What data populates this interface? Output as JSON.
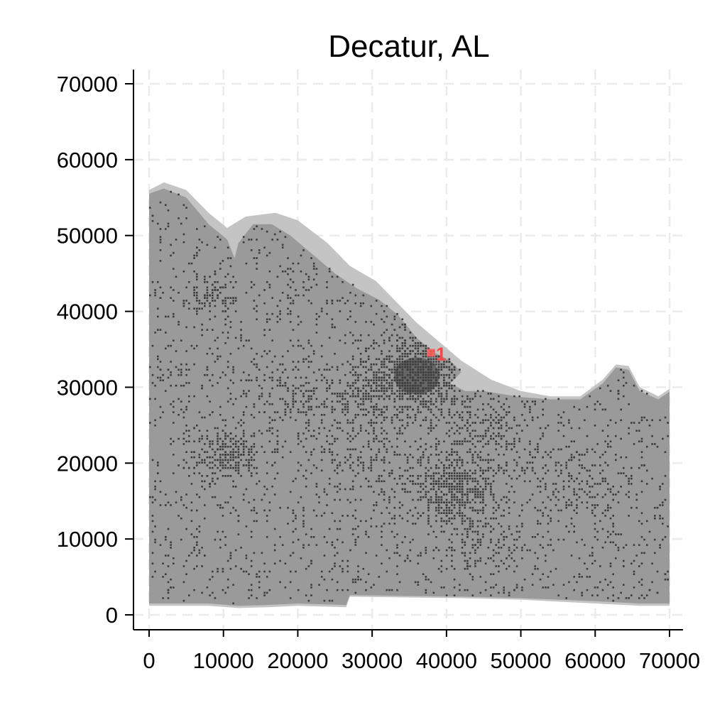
{
  "chart_data": {
    "type": "map",
    "title": "Decatur, AL",
    "xlabel": "",
    "ylabel": "",
    "xlim": [
      -2000,
      72000
    ],
    "ylim": [
      -2000,
      72000
    ],
    "x_ticks": [
      0,
      10000,
      20000,
      30000,
      40000,
      50000,
      60000,
      70000
    ],
    "y_ticks": [
      0,
      10000,
      20000,
      30000,
      40000,
      50000,
      60000,
      70000
    ],
    "x_tick_labels": [
      "0",
      "10000",
      "20000",
      "30000",
      "40000",
      "50000",
      "60000",
      "70000"
    ],
    "y_tick_labels": [
      "0",
      "10000",
      "20000",
      "30000",
      "40000",
      "50000",
      "60000",
      "70000"
    ],
    "grid": true,
    "colors": {
      "land": "#9a9a9a",
      "water_margin": "#c4c4c4",
      "development": "#3c3c3c",
      "marker": "#ff5a5a",
      "grid": "#ebebeb"
    },
    "outer_region": [
      [
        0,
        56000
      ],
      [
        2000,
        57000
      ],
      [
        5000,
        56000
      ],
      [
        8000,
        53000
      ],
      [
        10500,
        51000
      ],
      [
        13000,
        52500
      ],
      [
        17000,
        53000
      ],
      [
        20000,
        52000
      ],
      [
        24000,
        49000
      ],
      [
        27000,
        46000
      ],
      [
        30500,
        44000
      ],
      [
        33500,
        41000
      ],
      [
        36000,
        38500
      ],
      [
        39000,
        36000
      ],
      [
        42000,
        33500
      ],
      [
        46000,
        31000
      ],
      [
        50000,
        29500
      ],
      [
        54000,
        28800
      ],
      [
        58000,
        28800
      ],
      [
        61000,
        31000
      ],
      [
        62800,
        33000
      ],
      [
        64500,
        32800
      ],
      [
        66000,
        30000
      ],
      [
        68500,
        28800
      ],
      [
        70000,
        29800
      ],
      [
        70000,
        1200
      ],
      [
        66000,
        1200
      ],
      [
        60000,
        1500
      ],
      [
        50000,
        2000
      ],
      [
        42000,
        2200
      ],
      [
        34000,
        2300
      ],
      [
        27000,
        2400
      ],
      [
        26500,
        1000
      ],
      [
        20000,
        1200
      ],
      [
        16000,
        1000
      ],
      [
        12000,
        900
      ],
      [
        8000,
        1200
      ],
      [
        0,
        1200
      ]
    ],
    "inner_region": [
      [
        0,
        55500
      ],
      [
        2000,
        56200
      ],
      [
        5000,
        55000
      ],
      [
        8000,
        51500
      ],
      [
        10500,
        49500
      ],
      [
        11500,
        47000
      ],
      [
        12000,
        49000
      ],
      [
        14000,
        51500
      ],
      [
        16500,
        51500
      ],
      [
        19000,
        50000
      ],
      [
        22000,
        47500
      ],
      [
        25000,
        45000
      ],
      [
        28000,
        43000
      ],
      [
        31000,
        41500
      ],
      [
        33500,
        39500
      ],
      [
        36000,
        36500
      ],
      [
        38500,
        34500
      ],
      [
        40500,
        33500
      ],
      [
        42000,
        32000
      ],
      [
        40500,
        30500
      ],
      [
        42500,
        29500
      ],
      [
        45000,
        29500
      ],
      [
        50000,
        28700
      ],
      [
        54000,
        28400
      ],
      [
        58000,
        28400
      ],
      [
        61000,
        30500
      ],
      [
        62800,
        32600
      ],
      [
        64500,
        32300
      ],
      [
        66000,
        29500
      ],
      [
        68500,
        28400
      ],
      [
        70000,
        29400
      ],
      [
        70000,
        1500
      ],
      [
        66000,
        1500
      ],
      [
        60000,
        1800
      ],
      [
        50000,
        2200
      ],
      [
        42000,
        2400
      ],
      [
        34000,
        2500
      ],
      [
        27000,
        2600
      ],
      [
        26500,
        1300
      ],
      [
        20000,
        1500
      ],
      [
        16000,
        1300
      ],
      [
        12000,
        1200
      ],
      [
        8000,
        1500
      ],
      [
        0,
        1500
      ]
    ],
    "development_clusters": [
      {
        "x": 36000,
        "y": 31500,
        "spread": 3800,
        "points": 900
      },
      {
        "x": 41000,
        "y": 16500,
        "spread": 3200,
        "points": 480
      },
      {
        "x": 10500,
        "y": 21000,
        "spread": 2200,
        "points": 220
      },
      {
        "x": 30000,
        "y": 29000,
        "spread": 3000,
        "points": 160
      },
      {
        "x": 46000,
        "y": 24500,
        "spread": 3500,
        "points": 160
      },
      {
        "x": 22000,
        "y": 28000,
        "spread": 4000,
        "points": 150
      },
      {
        "x": 8500,
        "y": 42000,
        "spread": 1500,
        "points": 70
      },
      {
        "x": 57000,
        "y": 17000,
        "spread": 3500,
        "points": 120
      },
      {
        "x": 44000,
        "y": 9000,
        "spread": 3000,
        "points": 100
      },
      {
        "x": 30000,
        "y": 20000,
        "spread": 4000,
        "points": 120
      }
    ],
    "background_scatter_points": 3200,
    "markers": [
      {
        "x": 38000,
        "y": 34500,
        "label": "1",
        "color": "#ff4444"
      }
    ]
  }
}
